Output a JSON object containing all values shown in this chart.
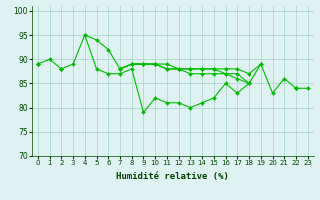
{
  "xlabel": "Humidité relative (%)",
  "bg_color": "#dff2f2",
  "grid_color": "#b0d8d0",
  "line_color": "#00bb00",
  "xlim": [
    -0.5,
    23.5
  ],
  "ylim": [
    70,
    101
  ],
  "yticks": [
    70,
    75,
    80,
    85,
    90,
    95,
    100
  ],
  "xticks": [
    0,
    1,
    2,
    3,
    4,
    5,
    6,
    7,
    8,
    9,
    10,
    11,
    12,
    13,
    14,
    15,
    16,
    17,
    18,
    19,
    20,
    21,
    22,
    23
  ],
  "series": [
    [
      89,
      90,
      88,
      89,
      95,
      88,
      87,
      87,
      88,
      79,
      82,
      81,
      81,
      80,
      81,
      82,
      85,
      83,
      85,
      89,
      83,
      86,
      84,
      84
    ],
    [
      89,
      null,
      88,
      null,
      95,
      94,
      92,
      88,
      89,
      89,
      89,
      89,
      88,
      88,
      88,
      88,
      88,
      88,
      87,
      89,
      null,
      null,
      84,
      null
    ],
    [
      89,
      null,
      88,
      null,
      null,
      null,
      null,
      88,
      89,
      89,
      89,
      88,
      88,
      88,
      88,
      88,
      87,
      87,
      85,
      null,
      null,
      null,
      84,
      null
    ],
    [
      89,
      null,
      88,
      null,
      null,
      null,
      null,
      88,
      89,
      89,
      89,
      88,
      88,
      87,
      87,
      87,
      87,
      86,
      85,
      null,
      null,
      null,
      84,
      null
    ]
  ]
}
